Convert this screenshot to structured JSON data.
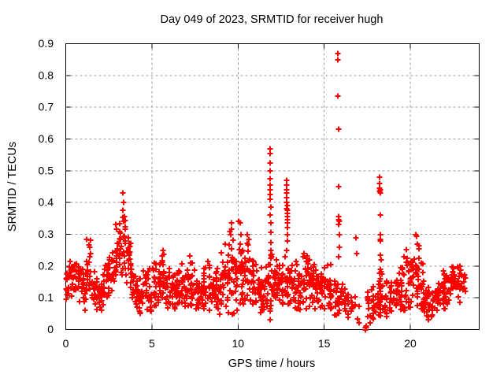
{
  "window": {
    "background": "#ffffff"
  },
  "chart_data": {
    "type": "scatter",
    "title": "Day 049 of 2023, SRMTID for receiver hugh",
    "xlabel": "GPS time / hours",
    "ylabel": "SRMTID / TECUs",
    "xlim": [
      0,
      24
    ],
    "ylim": [
      0,
      0.9
    ],
    "xticks": [
      [
        0,
        "0"
      ],
      [
        5,
        "5"
      ],
      [
        10,
        "10"
      ],
      [
        15,
        "15"
      ],
      [
        20,
        "20"
      ]
    ],
    "yticks": [
      [
        0,
        "0"
      ],
      [
        0.1,
        "0.1"
      ],
      [
        0.2,
        "0.2"
      ],
      [
        0.3,
        "0.3"
      ],
      [
        0.4,
        "0.4"
      ],
      [
        0.5,
        "0.5"
      ],
      [
        0.6,
        "0.6"
      ],
      [
        0.7,
        "0.7"
      ],
      [
        0.8,
        "0.8"
      ],
      [
        0.9,
        "0.9"
      ]
    ],
    "grid": {
      "show": true,
      "style": "dashed",
      "color": "#9b9b9b"
    },
    "frame_color": "#000000",
    "legend": "none",
    "series": [
      {
        "name": "SRMTID",
        "marker": "plus",
        "color": "#ff0000",
        "size": 7
      }
    ],
    "seed": 20230049,
    "points": [
      [
        1.22,
        0.285
      ],
      [
        1.38,
        0.26
      ],
      [
        2.92,
        0.33
      ],
      [
        2.96,
        0.315
      ],
      [
        3.33,
        0.43
      ],
      [
        3.37,
        0.4
      ],
      [
        3.3,
        0.375
      ],
      [
        3.42,
        0.355
      ],
      [
        9.58,
        0.3
      ],
      [
        9.6,
        0.335
      ],
      [
        9.63,
        0.315
      ],
      [
        10.05,
        0.34
      ],
      [
        10.12,
        0.335
      ],
      [
        10.18,
        0.3
      ],
      [
        10.55,
        0.3
      ],
      [
        10.62,
        0.285
      ],
      [
        11.86,
        0.57
      ],
      [
        11.87,
        0.555
      ],
      [
        11.86,
        0.525
      ],
      [
        11.87,
        0.5
      ],
      [
        11.88,
        0.475
      ],
      [
        11.87,
        0.455
      ],
      [
        11.88,
        0.44
      ],
      [
        11.87,
        0.425
      ],
      [
        11.88,
        0.41
      ],
      [
        11.89,
        0.385
      ],
      [
        11.88,
        0.36
      ],
      [
        11.89,
        0.335
      ],
      [
        11.9,
        0.305
      ],
      [
        11.89,
        0.275
      ],
      [
        11.9,
        0.25
      ],
      [
        11.91,
        0.225
      ],
      [
        11.88,
        0.03
      ],
      [
        12.82,
        0.47
      ],
      [
        12.83,
        0.455
      ],
      [
        12.82,
        0.44
      ],
      [
        12.84,
        0.43
      ],
      [
        12.83,
        0.415
      ],
      [
        12.84,
        0.4
      ],
      [
        12.85,
        0.39
      ],
      [
        12.84,
        0.38
      ],
      [
        12.85,
        0.375
      ],
      [
        12.86,
        0.365
      ],
      [
        12.85,
        0.355
      ],
      [
        12.86,
        0.345
      ],
      [
        12.85,
        0.335
      ],
      [
        12.87,
        0.32
      ],
      [
        12.86,
        0.3
      ],
      [
        12.87,
        0.28
      ],
      [
        15.78,
        0.87
      ],
      [
        15.8,
        0.85
      ],
      [
        15.81,
        0.735
      ],
      [
        15.83,
        0.63
      ],
      [
        15.85,
        0.45
      ],
      [
        15.86,
        0.355
      ],
      [
        15.85,
        0.345
      ],
      [
        15.87,
        0.34
      ],
      [
        15.86,
        0.33
      ],
      [
        15.87,
        0.3
      ],
      [
        15.88,
        0.26
      ],
      [
        15.84,
        0.23
      ],
      [
        16.84,
        0.29
      ],
      [
        16.88,
        0.24
      ],
      [
        17.38,
        0.005
      ],
      [
        17.41,
        0.0
      ],
      [
        17.43,
        0.01
      ],
      [
        17.45,
        0.005
      ],
      [
        18.22,
        0.48
      ],
      [
        18.24,
        0.46
      ],
      [
        18.23,
        0.445
      ],
      [
        18.25,
        0.44
      ],
      [
        18.24,
        0.435
      ],
      [
        18.26,
        0.43
      ],
      [
        18.25,
        0.36
      ],
      [
        18.27,
        0.3
      ],
      [
        18.26,
        0.285
      ],
      [
        18.28,
        0.28
      ],
      [
        18.27,
        0.235
      ],
      [
        18.29,
        0.22
      ],
      [
        18.28,
        0.19
      ],
      [
        20.3,
        0.3
      ],
      [
        20.36,
        0.295
      ],
      [
        20.42,
        0.27
      ],
      [
        20.48,
        0.265
      ],
      [
        20.52,
        0.255
      ]
    ],
    "density_bins": [
      [
        0.0,
        0.25,
        16,
        0.155,
        0.035,
        0.08,
        0.23
      ],
      [
        0.25,
        0.5,
        16,
        0.16,
        0.03,
        0.09,
        0.22
      ],
      [
        0.5,
        0.75,
        16,
        0.17,
        0.035,
        0.1,
        0.25
      ],
      [
        0.75,
        1.0,
        16,
        0.15,
        0.035,
        0.07,
        0.23
      ],
      [
        1.0,
        1.25,
        16,
        0.14,
        0.04,
        0.06,
        0.27
      ],
      [
        1.25,
        1.5,
        16,
        0.16,
        0.05,
        0.07,
        0.3
      ],
      [
        1.5,
        1.75,
        16,
        0.12,
        0.035,
        0.03,
        0.2
      ],
      [
        1.75,
        2.0,
        16,
        0.105,
        0.03,
        0.05,
        0.17
      ],
      [
        2.0,
        2.25,
        16,
        0.125,
        0.035,
        0.06,
        0.21
      ],
      [
        2.25,
        2.5,
        16,
        0.165,
        0.04,
        0.09,
        0.26
      ],
      [
        2.5,
        2.75,
        16,
        0.17,
        0.05,
        0.09,
        0.29
      ],
      [
        2.75,
        3.0,
        16,
        0.21,
        0.05,
        0.11,
        0.33
      ],
      [
        3.0,
        3.25,
        16,
        0.25,
        0.05,
        0.13,
        0.36
      ],
      [
        3.25,
        3.5,
        16,
        0.28,
        0.055,
        0.14,
        0.42
      ],
      [
        3.5,
        3.75,
        16,
        0.22,
        0.055,
        0.1,
        0.36
      ],
      [
        3.75,
        4.0,
        16,
        0.16,
        0.04,
        0.08,
        0.26
      ],
      [
        4.0,
        4.25,
        16,
        0.12,
        0.03,
        0.06,
        0.19
      ],
      [
        4.25,
        4.5,
        16,
        0.1,
        0.03,
        0.04,
        0.17
      ],
      [
        4.5,
        4.75,
        16,
        0.13,
        0.035,
        0.06,
        0.2
      ],
      [
        4.75,
        5.0,
        16,
        0.12,
        0.04,
        0.02,
        0.2
      ],
      [
        5.0,
        5.25,
        16,
        0.14,
        0.035,
        0.07,
        0.22
      ],
      [
        5.25,
        5.5,
        16,
        0.15,
        0.04,
        0.07,
        0.24
      ],
      [
        5.5,
        5.75,
        16,
        0.16,
        0.04,
        0.08,
        0.27
      ],
      [
        5.75,
        6.0,
        16,
        0.13,
        0.035,
        0.06,
        0.21
      ],
      [
        6.0,
        6.25,
        16,
        0.13,
        0.03,
        0.07,
        0.2
      ],
      [
        6.25,
        6.5,
        16,
        0.125,
        0.03,
        0.06,
        0.2
      ],
      [
        6.5,
        6.75,
        16,
        0.12,
        0.035,
        0.05,
        0.21
      ],
      [
        6.75,
        7.0,
        16,
        0.14,
        0.04,
        0.06,
        0.23
      ],
      [
        7.0,
        7.25,
        16,
        0.14,
        0.04,
        0.07,
        0.24
      ],
      [
        7.25,
        7.5,
        16,
        0.135,
        0.04,
        0.06,
        0.25
      ],
      [
        7.5,
        7.75,
        16,
        0.12,
        0.035,
        0.05,
        0.22
      ],
      [
        7.75,
        8.0,
        16,
        0.115,
        0.03,
        0.05,
        0.19
      ],
      [
        8.0,
        8.25,
        16,
        0.13,
        0.04,
        0.06,
        0.24
      ],
      [
        8.25,
        8.5,
        16,
        0.14,
        0.045,
        0.06,
        0.26
      ],
      [
        8.5,
        8.75,
        16,
        0.11,
        0.035,
        0.04,
        0.19
      ],
      [
        8.75,
        9.0,
        16,
        0.12,
        0.04,
        0.04,
        0.21
      ],
      [
        9.0,
        9.25,
        16,
        0.14,
        0.05,
        0.05,
        0.27
      ],
      [
        9.25,
        9.5,
        16,
        0.16,
        0.06,
        0.02,
        0.3
      ],
      [
        9.5,
        9.75,
        16,
        0.17,
        0.065,
        0.01,
        0.34
      ],
      [
        9.75,
        10.0,
        16,
        0.15,
        0.05,
        0.04,
        0.27
      ],
      [
        10.0,
        10.25,
        16,
        0.18,
        0.055,
        0.07,
        0.34
      ],
      [
        10.25,
        10.5,
        16,
        0.17,
        0.05,
        0.08,
        0.3
      ],
      [
        10.5,
        10.75,
        16,
        0.17,
        0.05,
        0.08,
        0.3
      ],
      [
        10.75,
        11.0,
        16,
        0.15,
        0.045,
        0.07,
        0.26
      ],
      [
        11.0,
        11.25,
        16,
        0.13,
        0.04,
        0.06,
        0.22
      ],
      [
        11.25,
        11.5,
        16,
        0.12,
        0.04,
        0.05,
        0.21
      ],
      [
        11.5,
        11.75,
        16,
        0.13,
        0.045,
        0.03,
        0.22
      ],
      [
        11.75,
        12.0,
        16,
        0.14,
        0.05,
        0.05,
        0.25
      ],
      [
        12.0,
        12.25,
        16,
        0.13,
        0.04,
        0.06,
        0.22
      ],
      [
        12.25,
        12.5,
        16,
        0.14,
        0.04,
        0.06,
        0.23
      ],
      [
        12.5,
        12.75,
        16,
        0.15,
        0.045,
        0.07,
        0.26
      ],
      [
        12.75,
        13.0,
        16,
        0.15,
        0.05,
        0.06,
        0.28
      ],
      [
        13.0,
        13.25,
        16,
        0.15,
        0.04,
        0.07,
        0.25
      ],
      [
        13.25,
        13.5,
        16,
        0.14,
        0.04,
        0.05,
        0.23
      ],
      [
        13.5,
        13.75,
        16,
        0.13,
        0.04,
        0.05,
        0.22
      ],
      [
        13.75,
        14.0,
        16,
        0.14,
        0.045,
        0.06,
        0.25
      ],
      [
        14.0,
        14.25,
        16,
        0.15,
        0.045,
        0.07,
        0.26
      ],
      [
        14.25,
        14.5,
        16,
        0.14,
        0.04,
        0.06,
        0.23
      ],
      [
        14.5,
        14.75,
        16,
        0.13,
        0.035,
        0.06,
        0.21
      ],
      [
        14.75,
        15.0,
        16,
        0.135,
        0.04,
        0.06,
        0.22
      ],
      [
        15.0,
        15.25,
        16,
        0.14,
        0.04,
        0.06,
        0.23
      ],
      [
        15.25,
        15.5,
        16,
        0.12,
        0.04,
        0.04,
        0.21
      ],
      [
        15.5,
        15.75,
        14,
        0.1,
        0.035,
        0.04,
        0.18
      ],
      [
        15.75,
        16.0,
        12,
        0.09,
        0.03,
        0.04,
        0.16
      ],
      [
        16.0,
        16.25,
        10,
        0.09,
        0.03,
        0.03,
        0.15
      ],
      [
        16.25,
        16.5,
        8,
        0.08,
        0.025,
        0.03,
        0.14
      ],
      [
        16.5,
        16.75,
        6,
        0.08,
        0.025,
        0.03,
        0.13
      ],
      [
        16.75,
        17.0,
        4,
        0.07,
        0.02,
        0.03,
        0.11
      ],
      [
        17.0,
        17.25,
        2,
        0.05,
        0.02,
        0.02,
        0.09
      ],
      [
        17.5,
        17.75,
        10,
        0.07,
        0.03,
        0.01,
        0.13
      ],
      [
        17.75,
        18.0,
        14,
        0.09,
        0.035,
        0.03,
        0.16
      ],
      [
        18.0,
        18.25,
        16,
        0.11,
        0.04,
        0.04,
        0.19
      ],
      [
        18.25,
        18.5,
        16,
        0.12,
        0.04,
        0.05,
        0.2
      ],
      [
        18.5,
        18.75,
        14,
        0.1,
        0.035,
        0.04,
        0.17
      ],
      [
        18.75,
        19.0,
        14,
        0.095,
        0.03,
        0.04,
        0.16
      ],
      [
        19.0,
        19.25,
        14,
        0.1,
        0.035,
        0.04,
        0.17
      ],
      [
        19.25,
        19.5,
        16,
        0.12,
        0.04,
        0.05,
        0.2
      ],
      [
        19.5,
        19.75,
        16,
        0.14,
        0.045,
        0.06,
        0.23
      ],
      [
        19.75,
        20.0,
        16,
        0.15,
        0.05,
        0.06,
        0.26
      ],
      [
        20.0,
        20.25,
        16,
        0.17,
        0.05,
        0.07,
        0.28
      ],
      [
        20.25,
        20.5,
        16,
        0.17,
        0.055,
        0.07,
        0.3
      ],
      [
        20.5,
        20.75,
        16,
        0.14,
        0.05,
        0.05,
        0.26
      ],
      [
        20.75,
        21.0,
        16,
        0.1,
        0.035,
        0.04,
        0.17
      ],
      [
        21.0,
        21.25,
        14,
        0.085,
        0.03,
        0.03,
        0.15
      ],
      [
        21.25,
        21.5,
        14,
        0.09,
        0.03,
        0.04,
        0.16
      ],
      [
        21.5,
        21.75,
        14,
        0.1,
        0.03,
        0.05,
        0.17
      ],
      [
        21.75,
        22.0,
        16,
        0.12,
        0.035,
        0.06,
        0.19
      ],
      [
        22.0,
        22.25,
        16,
        0.13,
        0.035,
        0.06,
        0.2
      ],
      [
        22.25,
        22.5,
        16,
        0.15,
        0.035,
        0.08,
        0.2
      ],
      [
        22.5,
        22.75,
        16,
        0.16,
        0.03,
        0.09,
        0.2
      ],
      [
        22.75,
        23.0,
        16,
        0.15,
        0.035,
        0.08,
        0.2
      ],
      [
        23.0,
        23.2,
        10,
        0.13,
        0.03,
        0.07,
        0.18
      ]
    ]
  }
}
